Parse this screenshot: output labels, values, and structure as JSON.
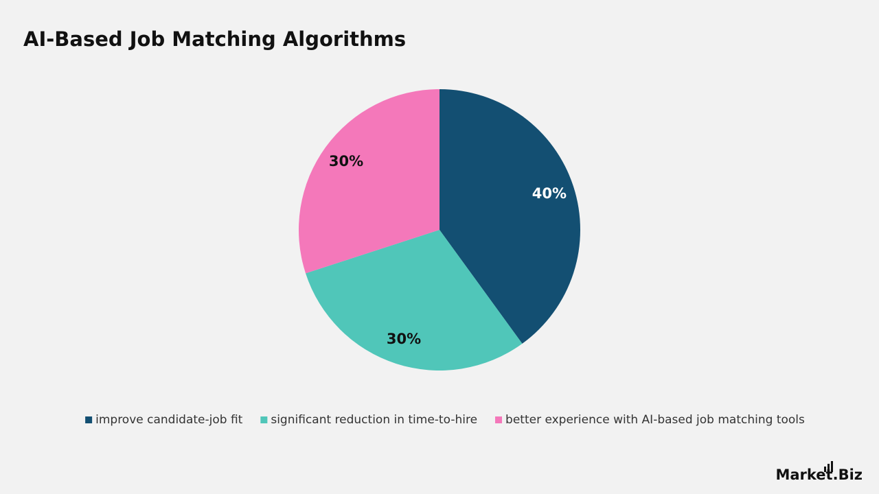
{
  "chart_data": {
    "type": "pie",
    "title": "AI-Based Job Matching Algorithms",
    "categories": [
      "improve candidate-job fit",
      "significant reduction in time-to-hire",
      "better experience with AI-based job matching tools"
    ],
    "values": [
      40,
      30,
      30
    ],
    "value_labels": [
      "40%",
      "30%",
      "30%"
    ],
    "colors": [
      "#134f72",
      "#50c6b9",
      "#f478ba"
    ],
    "legend": "bottom"
  },
  "brand": "Market.Biz"
}
